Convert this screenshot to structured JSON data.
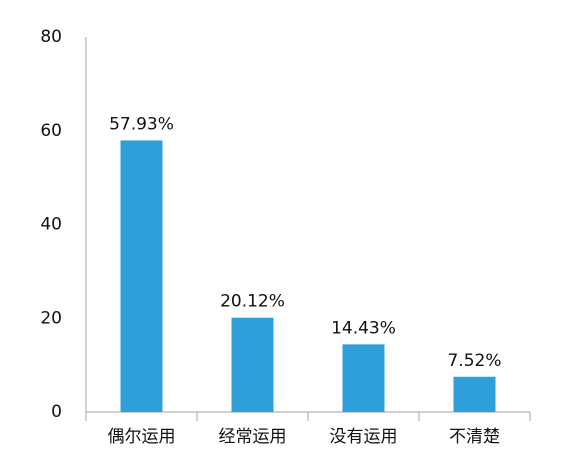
{
  "chart_data": {
    "type": "bar",
    "categories": [
      "偶尔运用",
      "经常运用",
      "没有运用",
      "不清楚"
    ],
    "values": [
      57.93,
      20.12,
      14.43,
      7.52
    ],
    "value_labels": [
      "57.93%",
      "20.12%",
      "14.43%",
      "7.52%"
    ],
    "color": "#2f9fd9",
    "ylim": [
      0,
      80
    ],
    "yticks": [
      0,
      20,
      40,
      60,
      80
    ],
    "grid": false
  }
}
